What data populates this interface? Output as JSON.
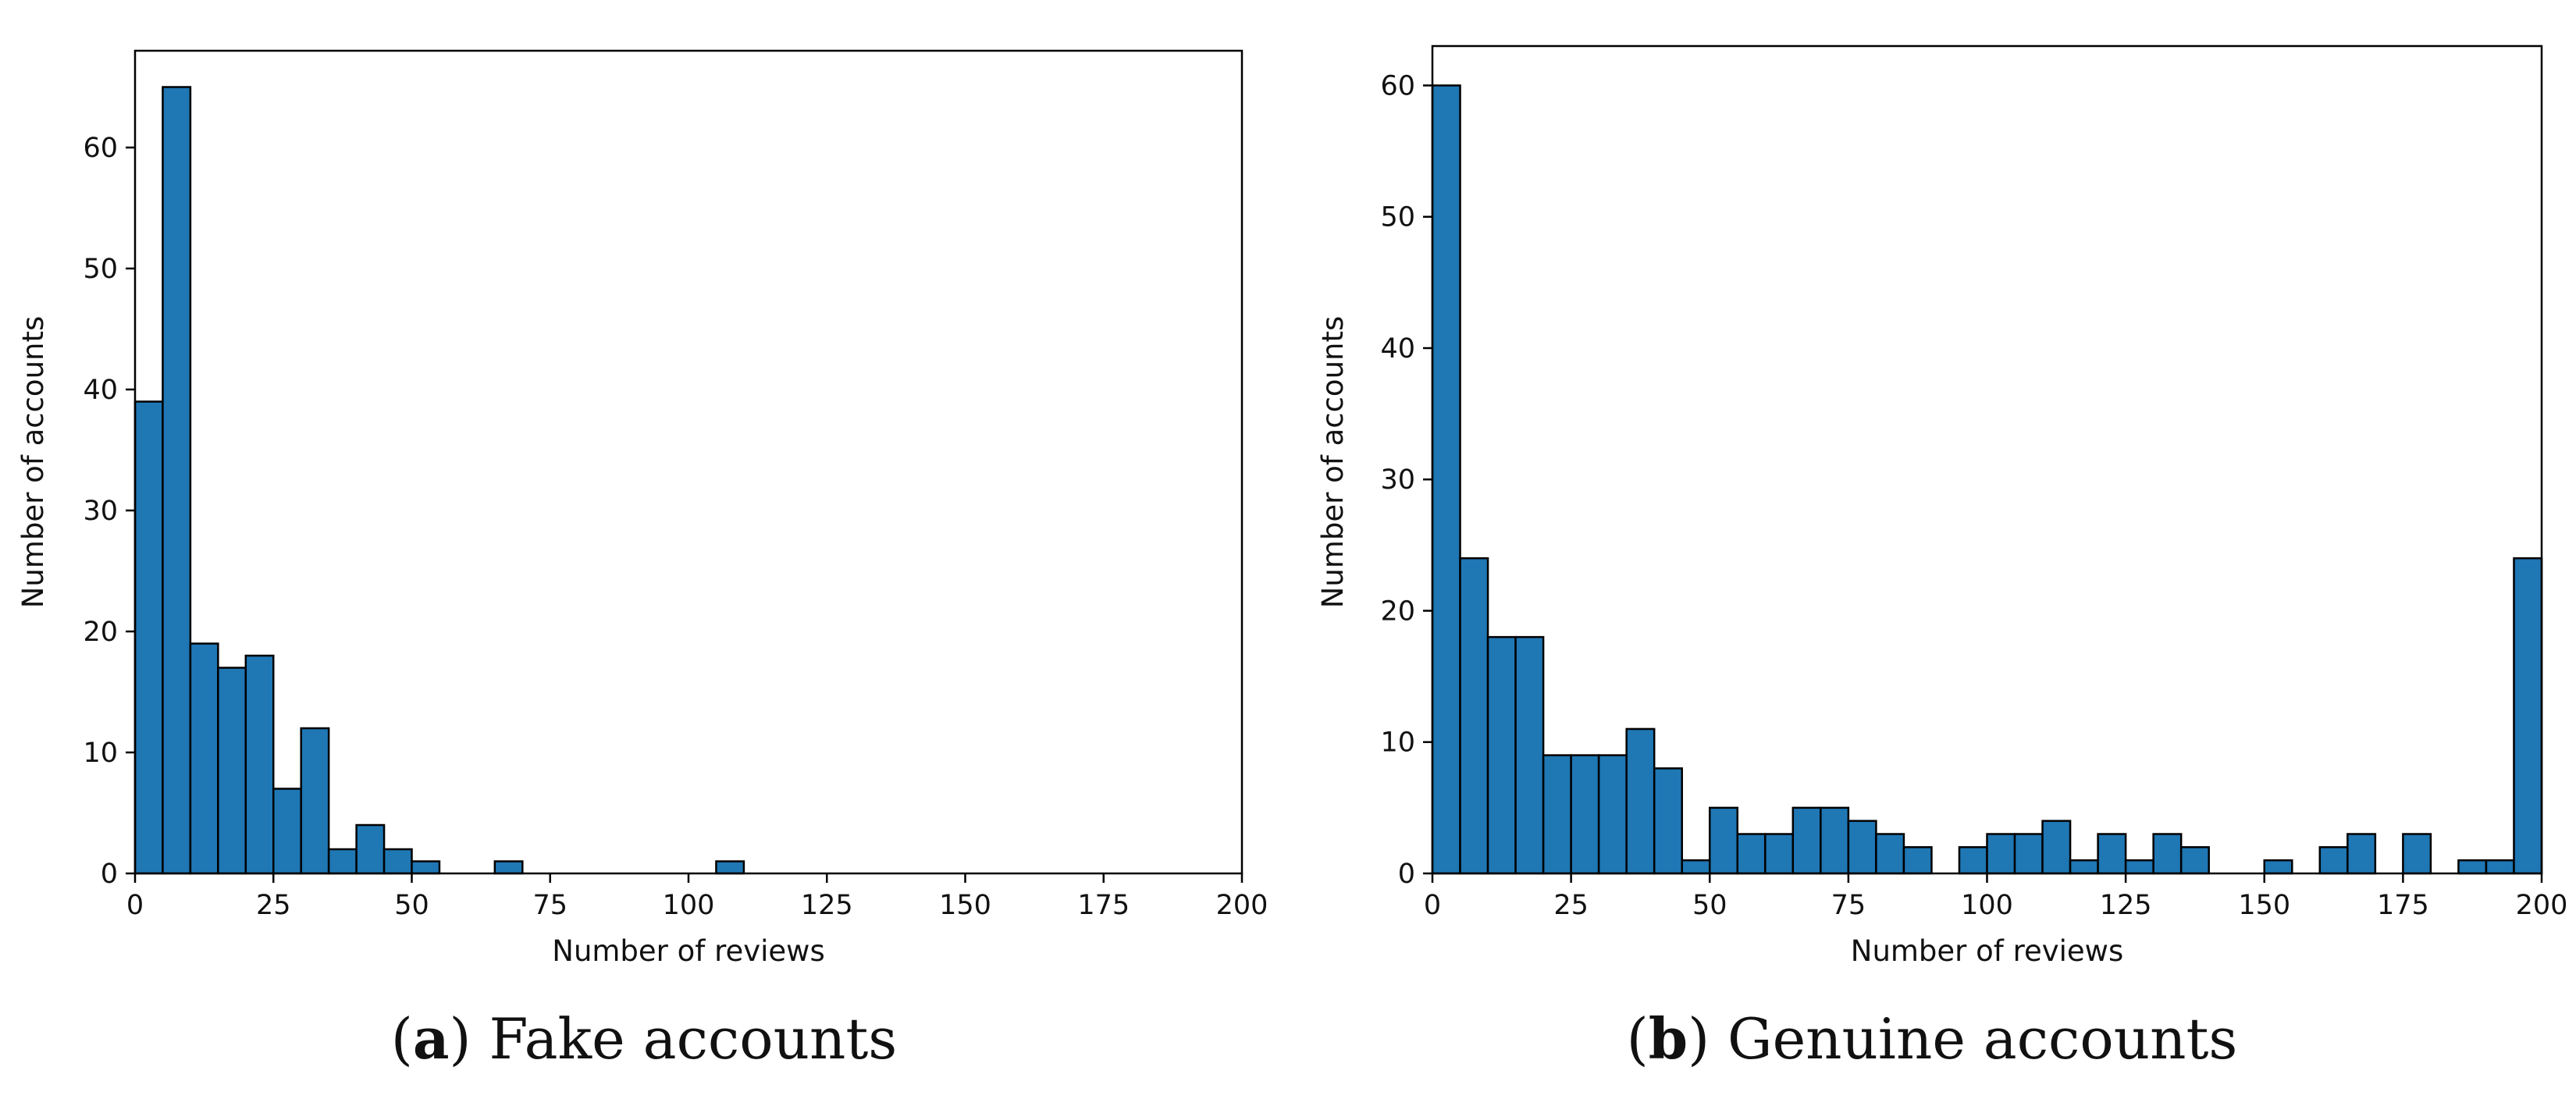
{
  "chart_data": [
    {
      "type": "bar",
      "subtitle_letter": "a",
      "subtitle_text": "Fake accounts",
      "xlabel": "Number of reviews",
      "ylabel": "Number of accounts",
      "xlim": [
        0,
        200
      ],
      "ylim": [
        0,
        68
      ],
      "bin_width": 5,
      "xticks": [
        0,
        25,
        50,
        75,
        100,
        125,
        150,
        175,
        200
      ],
      "yticks": [
        0,
        10,
        20,
        30,
        40,
        50,
        60
      ],
      "values": [
        39,
        65,
        19,
        17,
        18,
        7,
        12,
        2,
        4,
        2,
        1,
        0,
        0,
        1,
        0,
        0,
        0,
        0,
        0,
        0,
        0,
        1,
        0,
        0,
        0,
        0,
        0,
        0,
        0,
        0,
        0,
        0,
        0,
        0,
        0,
        0,
        0,
        0,
        0,
        0
      ]
    },
    {
      "type": "bar",
      "subtitle_letter": "b",
      "subtitle_text": "Genuine accounts",
      "xlabel": "Number of reviews",
      "ylabel": "Number of accounts",
      "xlim": [
        0,
        200
      ],
      "ylim": [
        0,
        63
      ],
      "bin_width": 5,
      "xticks": [
        0,
        25,
        50,
        75,
        100,
        125,
        150,
        175,
        200
      ],
      "yticks": [
        0,
        10,
        20,
        30,
        40,
        50,
        60
      ],
      "values": [
        60,
        24,
        18,
        18,
        9,
        9,
        9,
        11,
        8,
        1,
        5,
        3,
        3,
        5,
        5,
        4,
        3,
        2,
        0,
        2,
        3,
        3,
        4,
        1,
        3,
        1,
        3,
        2,
        0,
        0,
        1,
        0,
        2,
        3,
        0,
        3,
        0,
        1,
        1,
        24
      ]
    }
  ]
}
